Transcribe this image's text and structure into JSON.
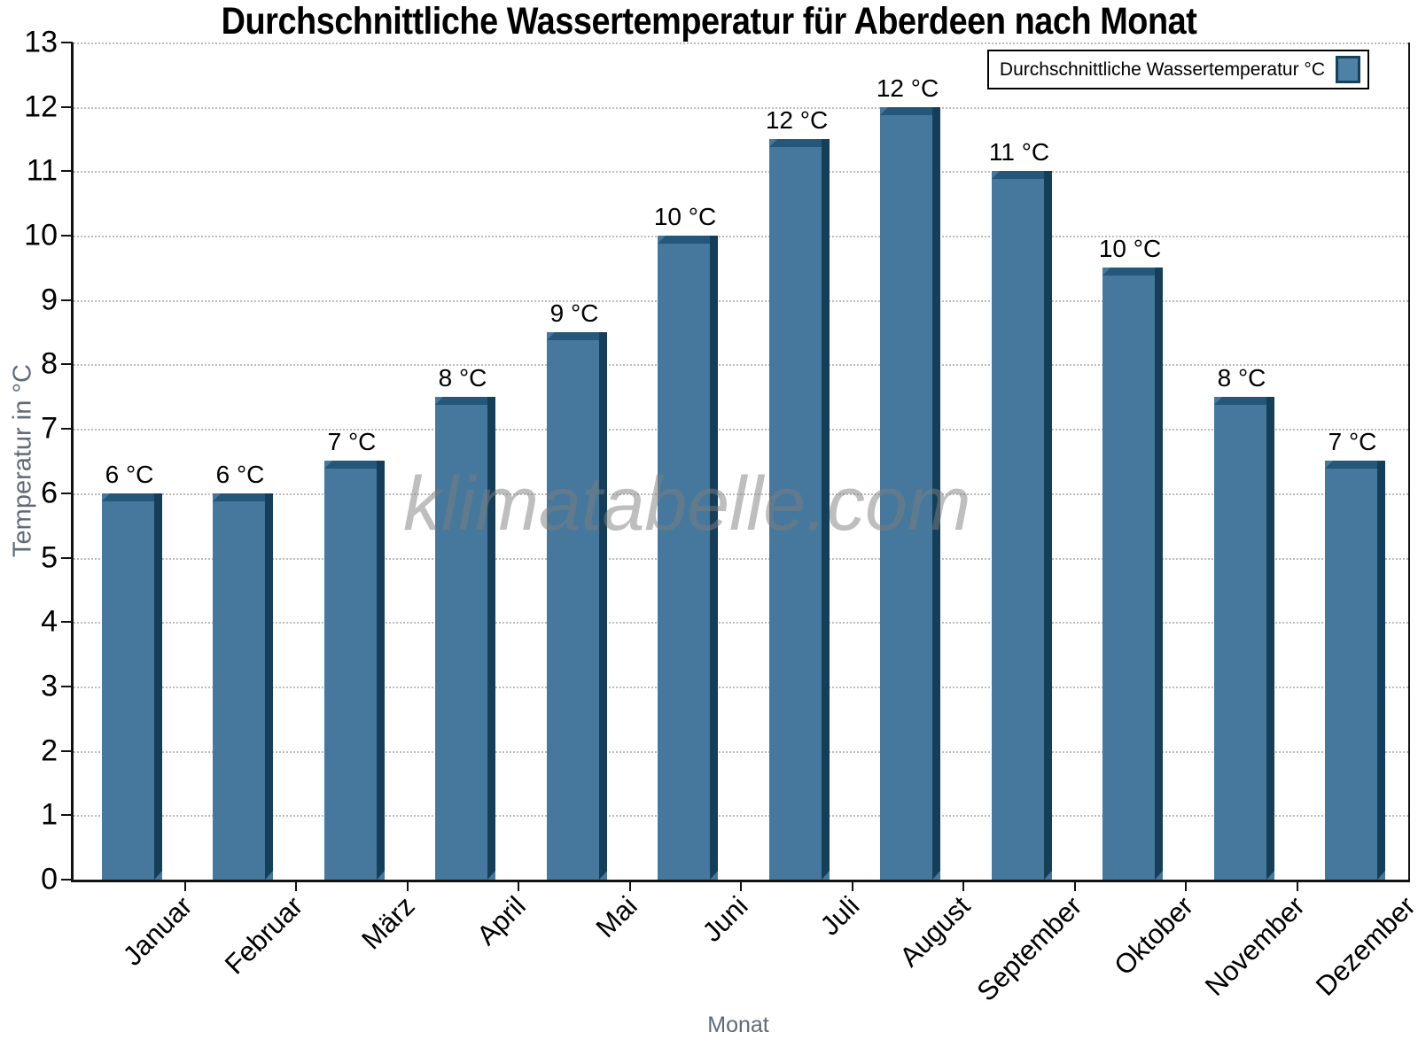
{
  "title": "Durchschnittliche Wassertemperatur für Aberdeen nach Monat",
  "watermark": "klimatabelle.com",
  "legend": {
    "label": "Durchschnittliche Wassertemperatur °C"
  },
  "chart_data": {
    "type": "bar",
    "title": "Durchschnittliche Wassertemperatur für Aberdeen nach Monat",
    "xlabel": "Monat",
    "ylabel": "Temperatur in °C",
    "categories": [
      "Januar",
      "Februar",
      "März",
      "April",
      "Mai",
      "Juni",
      "Juli",
      "August",
      "September",
      "Oktober",
      "November",
      "Dezember"
    ],
    "values": [
      6.0,
      6.0,
      6.5,
      7.5,
      8.5,
      10.0,
      11.5,
      12.0,
      11.0,
      9.5,
      7.5,
      6.5
    ],
    "bar_labels": [
      "6 °C",
      "6 °C",
      "7 °C",
      "8 °C",
      "9 °C",
      "10 °C",
      "12 °C",
      "12 °C",
      "11 °C",
      "10 °C",
      "8 °C",
      "7 °C"
    ],
    "ylim": [
      0,
      13
    ],
    "yticks": [
      0,
      1,
      2,
      3,
      4,
      5,
      6,
      7,
      8,
      9,
      10,
      11,
      12,
      13
    ],
    "grid": true,
    "legend_position": "top-right",
    "legend_label": "Durchschnittliche Wassertemperatur °C",
    "bar_color": "#45789C",
    "bar_edge_top_color": "#23587A",
    "bar_edge_right_color": "#153F58",
    "legend_swatch_color": "#4D81A6",
    "axis_title_color": "#5f6b78"
  }
}
